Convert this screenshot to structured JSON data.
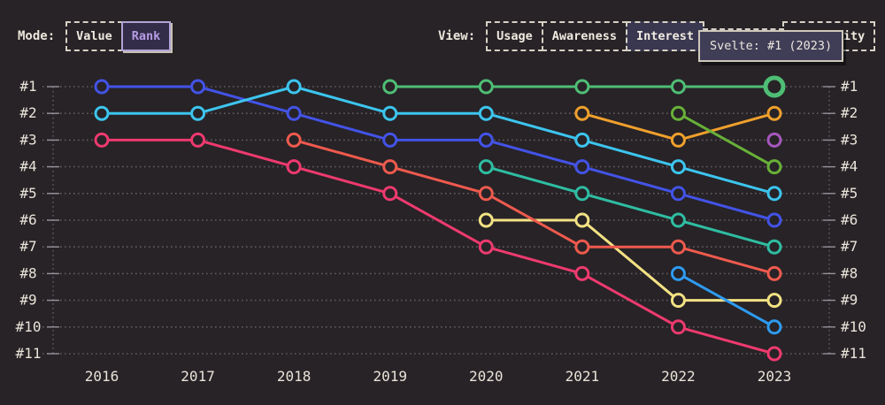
{
  "header": {
    "mode": {
      "label": "Mode:",
      "options": [
        {
          "label": "Value",
          "selected": false
        },
        {
          "label": "Rank",
          "selected": true
        }
      ]
    },
    "view": {
      "label": "View:",
      "options": [
        {
          "label": "Usage",
          "selected": false
        },
        {
          "label": "Awareness",
          "selected": false
        },
        {
          "label": "Interest",
          "selected": true
        },
        {
          "label": "",
          "selected": false,
          "note": "button fully covered by tooltip"
        },
        {
          "label": "Positivity",
          "selected": false,
          "note": "mostly covered by tooltip, only 'ty' visible"
        }
      ]
    },
    "tooltip": {
      "text": "Svelte: #1 (2023)"
    }
  },
  "chart_data": {
    "type": "line",
    "subtype": "bump-rank-chart",
    "title": "",
    "x": [
      2016,
      2017,
      2018,
      2019,
      2020,
      2021,
      2022,
      2023
    ],
    "yticks": [
      "#1",
      "#2",
      "#3",
      "#4",
      "#5",
      "#6",
      "#7",
      "#8",
      "#9",
      "#10",
      "#11"
    ],
    "ylim": [
      1,
      11
    ],
    "y_inverted": true,
    "grid": "dotted-horizontal, dotted vertical axis rails left and right, rank labels on both sides",
    "legend_position": "none",
    "style": {
      "background": "#272327",
      "gridline_color": "#625c60",
      "tick_color": "#97919a",
      "axis_text_color": "#e9e4d9",
      "accent_purple": "#b69be4",
      "tooltip_bg": "#403d57",
      "tooltip_border": "#cfc8bb"
    },
    "series": [
      {
        "name": "pink",
        "color": "#ee3a6f",
        "points": [
          [
            2016,
            3
          ],
          [
            2017,
            3
          ],
          [
            2018,
            4
          ],
          [
            2019,
            5
          ],
          [
            2020,
            7
          ],
          [
            2021,
            8
          ],
          [
            2022,
            10
          ],
          [
            2023,
            11
          ]
        ]
      },
      {
        "name": "yellow",
        "color": "#f3e283",
        "points": [
          [
            2020,
            6
          ],
          [
            2021,
            6
          ],
          [
            2022,
            9
          ],
          [
            2023,
            9
          ]
        ]
      },
      {
        "name": "salmon",
        "color": "#ee5a4d",
        "points": [
          [
            2018,
            3
          ],
          [
            2019,
            4
          ],
          [
            2020,
            5
          ],
          [
            2021,
            7
          ],
          [
            2022,
            7
          ],
          [
            2023,
            8
          ]
        ]
      },
      {
        "name": "teal",
        "color": "#2fbda2",
        "points": [
          [
            2020,
            4
          ],
          [
            2021,
            5
          ],
          [
            2022,
            6
          ],
          [
            2023,
            7
          ]
        ]
      },
      {
        "name": "sky-blue",
        "color": "#2e9bf0",
        "points": [
          [
            2022,
            8
          ],
          [
            2023,
            10
          ]
        ]
      },
      {
        "name": "blue",
        "color": "#4353e6",
        "points": [
          [
            2016,
            1
          ],
          [
            2017,
            1
          ],
          [
            2018,
            2
          ],
          [
            2019,
            3
          ],
          [
            2020,
            3
          ],
          [
            2021,
            4
          ],
          [
            2022,
            5
          ],
          [
            2023,
            6
          ]
        ]
      },
      {
        "name": "cyan",
        "color": "#3cc5ee",
        "points": [
          [
            2016,
            2
          ],
          [
            2017,
            2
          ],
          [
            2018,
            1
          ],
          [
            2019,
            2
          ],
          [
            2020,
            2
          ],
          [
            2021,
            3
          ],
          [
            2022,
            4
          ],
          [
            2023,
            5
          ]
        ]
      },
      {
        "name": "orange",
        "color": "#efa02c",
        "points": [
          [
            2021,
            2
          ],
          [
            2022,
            3
          ],
          [
            2023,
            2
          ]
        ]
      },
      {
        "name": "lime",
        "color": "#68b138",
        "points": [
          [
            2022,
            2
          ],
          [
            2023,
            4
          ]
        ]
      },
      {
        "name": "purple",
        "color": "#a757bd",
        "points": [
          [
            2023,
            3
          ]
        ]
      },
      {
        "name": "Svelte",
        "color": "#4fbe75",
        "points": [
          [
            2019,
            1
          ],
          [
            2020,
            1
          ],
          [
            2021,
            1
          ],
          [
            2022,
            1
          ],
          [
            2023,
            1
          ]
        ]
      }
    ],
    "highlight": {
      "series": "Svelte",
      "year": 2023,
      "rank": 1,
      "tooltip": "Svelte: #1 (2023)"
    }
  }
}
